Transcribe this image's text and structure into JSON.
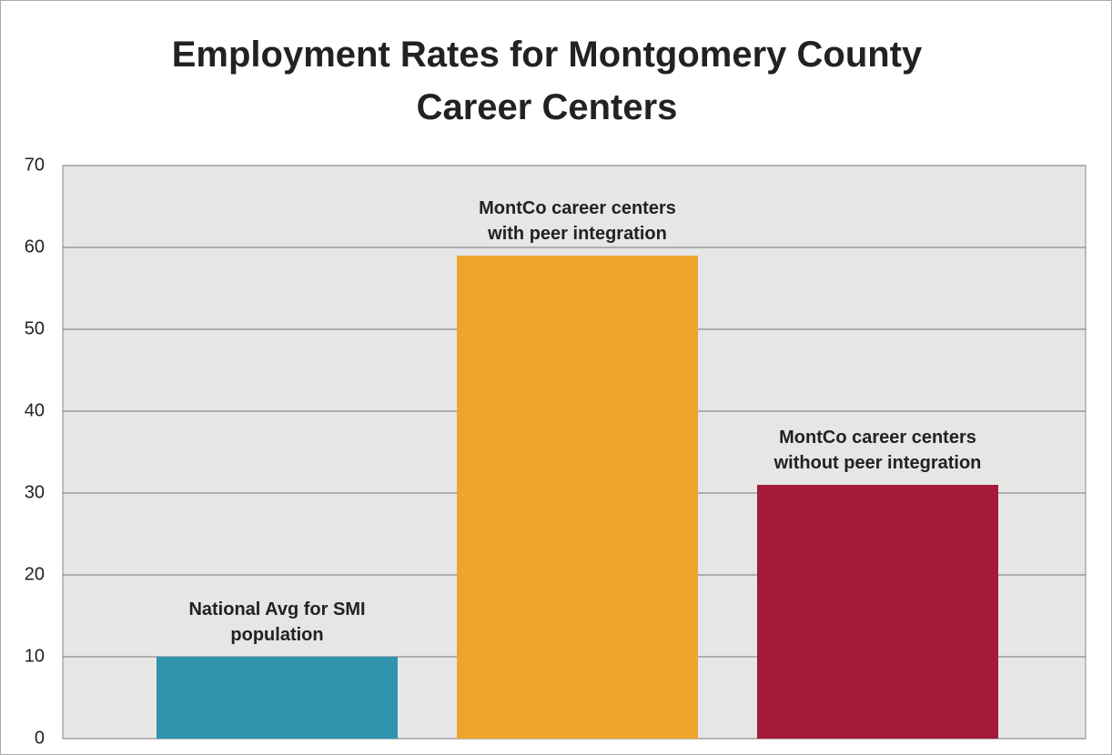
{
  "chart_data": {
    "type": "bar",
    "title": "Employment Rates for Montgomery County Career Centers",
    "categories": [
      "National Avg for SMI population",
      "MontCo career centers with peer integration",
      "MontCo career centers without peer integration"
    ],
    "values": [
      10,
      59,
      31
    ],
    "colors": [
      "#2f93ae",
      "#efa42c",
      "#a31b38"
    ],
    "ylim": [
      0,
      70
    ],
    "yticks": [
      0,
      10,
      20,
      30,
      40,
      50,
      60,
      70
    ],
    "grid": true
  }
}
